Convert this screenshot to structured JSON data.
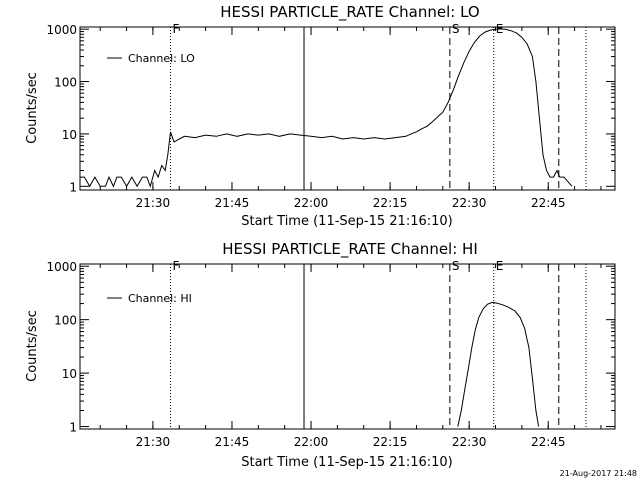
{
  "footer": {
    "timestamp": "21-Aug-2017 21:48"
  },
  "chart_data": [
    {
      "type": "line",
      "title": "HESSI PARTICLE_RATE Channel: LO",
      "xlabel": "Start Time (11-Sep-15 21:16:10)",
      "ylabel": "Counts/sec",
      "yscale": "log",
      "xlim": [
        "21:16:10",
        "22:57:40"
      ],
      "ylim": [
        0.85,
        1100
      ],
      "x_ticks": [
        "21:30",
        "21:45",
        "22:00",
        "22:15",
        "22:30",
        "22:45"
      ],
      "y_ticks": [
        "1",
        "10",
        "100",
        "1000"
      ],
      "legend": {
        "position": "top-left",
        "entries": [
          "Channel: LO"
        ]
      },
      "markers": [
        {
          "label": "F",
          "time": "21:33:20",
          "style": "dotted"
        },
        {
          "label": "",
          "time": "21:58:40",
          "style": "solid"
        },
        {
          "label": "S",
          "time": "22:26:20",
          "style": "dashed"
        },
        {
          "label": "E",
          "time": "22:34:40",
          "style": "dotted"
        },
        {
          "label": "",
          "time": "22:47:00",
          "style": "dashed"
        },
        {
          "label": "",
          "time": "22:52:10",
          "style": "dotted"
        }
      ],
      "series": [
        {
          "name": "Channel: LO",
          "points": [
            [
              "21:16:10",
              1.5
            ],
            [
              "21:17:00",
              1.5
            ],
            [
              "21:18:00",
              1.0
            ],
            [
              "21:19:00",
              1.5
            ],
            [
              "21:20:00",
              1.0
            ],
            [
              "21:21:00",
              1.0
            ],
            [
              "21:21:40",
              1.5
            ],
            [
              "21:22:30",
              1.0
            ],
            [
              "21:23:10",
              1.5
            ],
            [
              "21:24:00",
              1.5
            ],
            [
              "21:25:00",
              1.0
            ],
            [
              "21:26:00",
              1.5
            ],
            [
              "21:27:00",
              1.0
            ],
            [
              "21:28:00",
              1.5
            ],
            [
              "21:28:50",
              1.5
            ],
            [
              "21:29:30",
              1.0
            ],
            [
              "21:30:20",
              2.0
            ],
            [
              "21:31:00",
              1.5
            ],
            [
              "21:31:40",
              2.5
            ],
            [
              "21:32:20",
              2.0
            ],
            [
              "21:32:50",
              4.0
            ],
            [
              "21:33:20",
              11.0
            ],
            [
              "21:34:00",
              7.0
            ],
            [
              "21:35:00",
              8.0
            ],
            [
              "21:36:00",
              9.0
            ],
            [
              "21:38:00",
              8.5
            ],
            [
              "21:40:00",
              9.5
            ],
            [
              "21:42:00",
              9.0
            ],
            [
              "21:44:00",
              10.0
            ],
            [
              "21:46:00",
              9.0
            ],
            [
              "21:48:00",
              10.0
            ],
            [
              "21:50:00",
              9.5
            ],
            [
              "21:52:00",
              10.0
            ],
            [
              "21:54:00",
              9.0
            ],
            [
              "21:56:00",
              10.0
            ],
            [
              "21:58:00",
              9.5
            ],
            [
              "22:00:00",
              9.0
            ],
            [
              "22:02:00",
              8.5
            ],
            [
              "22:04:00",
              9.0
            ],
            [
              "22:06:00",
              8.0
            ],
            [
              "22:08:00",
              8.5
            ],
            [
              "22:10:00",
              8.0
            ],
            [
              "22:12:00",
              8.5
            ],
            [
              "22:14:00",
              8.0
            ],
            [
              "22:16:00",
              8.5
            ],
            [
              "22:18:00",
              9.0
            ],
            [
              "22:19:00",
              10.0
            ],
            [
              "22:20:00",
              11.0
            ],
            [
              "22:21:00",
              12.5
            ],
            [
              "22:22:00",
              14.0
            ],
            [
              "22:23:00",
              17.0
            ],
            [
              "22:24:00",
              21.0
            ],
            [
              "22:25:00",
              26.0
            ],
            [
              "22:26:00",
              40.0
            ],
            [
              "22:27:00",
              70.0
            ],
            [
              "22:28:00",
              130.0
            ],
            [
              "22:29:00",
              230.0
            ],
            [
              "22:30:00",
              380.0
            ],
            [
              "22:31:00",
              560.0
            ],
            [
              "22:32:00",
              740.0
            ],
            [
              "22:33:00",
              880.0
            ],
            [
              "22:34:00",
              960.0
            ],
            [
              "22:35:00",
              1000.0
            ],
            [
              "22:36:00",
              1010.0
            ],
            [
              "22:37:00",
              990.0
            ],
            [
              "22:38:00",
              930.0
            ],
            [
              "22:39:00",
              840.0
            ],
            [
              "22:40:00",
              700.0
            ],
            [
              "22:41:00",
              520.0
            ],
            [
              "22:42:00",
              300.0
            ],
            [
              "22:42:40",
              100.0
            ],
            [
              "22:43:20",
              20.0
            ],
            [
              "22:44:00",
              4.0
            ],
            [
              "22:44:40",
              2.0
            ],
            [
              "22:45:20",
              1.5
            ],
            [
              "22:46:00",
              1.5
            ],
            [
              "22:46:40",
              2.0
            ],
            [
              "22:47:10",
              1.5
            ],
            [
              "22:48:00",
              1.5
            ],
            [
              "22:49:30",
              1.0
            ]
          ]
        }
      ]
    },
    {
      "type": "line",
      "title": "HESSI PARTICLE_RATE Channel: HI",
      "xlabel": "Start Time (11-Sep-15 21:16:10)",
      "ylabel": "Counts/sec",
      "yscale": "log",
      "xlim": [
        "21:16:10",
        "22:57:40"
      ],
      "ylim": [
        0.9,
        1100
      ],
      "x_ticks": [
        "21:30",
        "21:45",
        "22:00",
        "22:15",
        "22:30",
        "22:45"
      ],
      "y_ticks": [
        "1",
        "10",
        "100",
        "1000"
      ],
      "legend": {
        "position": "top-left",
        "entries": [
          "Channel: HI"
        ]
      },
      "markers": [
        {
          "label": "F",
          "time": "21:33:20",
          "style": "dotted"
        },
        {
          "label": "",
          "time": "21:58:40",
          "style": "solid"
        },
        {
          "label": "S",
          "time": "22:26:20",
          "style": "dashed"
        },
        {
          "label": "E",
          "time": "22:34:40",
          "style": "dotted"
        },
        {
          "label": "",
          "time": "22:47:00",
          "style": "dashed"
        },
        {
          "label": "",
          "time": "22:52:10",
          "style": "dotted"
        }
      ],
      "series": [
        {
          "name": "Channel: HI",
          "points": [
            [
              "22:27:50",
              1.0
            ],
            [
              "22:28:30",
              2.0
            ],
            [
              "22:29:10",
              5.0
            ],
            [
              "22:29:50",
              12.0
            ],
            [
              "22:30:30",
              30.0
            ],
            [
              "22:31:10",
              65.0
            ],
            [
              "22:31:50",
              110.0
            ],
            [
              "22:32:40",
              160.0
            ],
            [
              "22:33:30",
              195.0
            ],
            [
              "22:34:20",
              210.0
            ],
            [
              "22:35:10",
              205.0
            ],
            [
              "22:36:20",
              190.0
            ],
            [
              "22:37:30",
              170.0
            ],
            [
              "22:38:40",
              145.0
            ],
            [
              "22:39:40",
              110.0
            ],
            [
              "22:40:30",
              70.0
            ],
            [
              "22:41:20",
              30.0
            ],
            [
              "22:42:00",
              8.0
            ],
            [
              "22:42:40",
              2.0
            ],
            [
              "22:43:10",
              1.0
            ]
          ]
        }
      ]
    }
  ]
}
